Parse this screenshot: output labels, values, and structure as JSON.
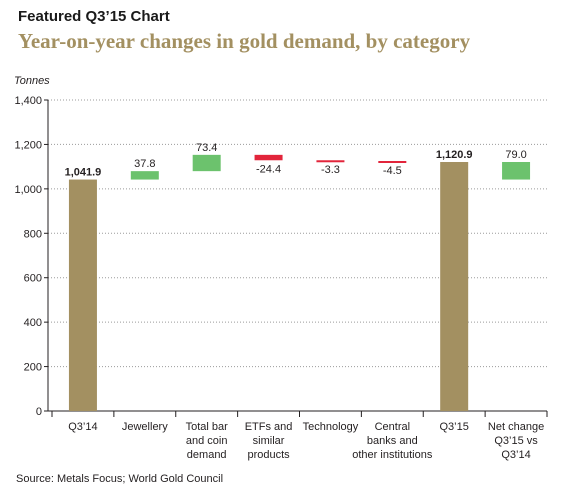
{
  "header": {
    "featured_label": "Featured Q3’15 Chart",
    "title": "Year-on-year changes in gold demand, by category"
  },
  "footer": {
    "source": "Source: Metals Focus; World Gold Council"
  },
  "colors": {
    "total": "#a39061",
    "increase": "#6cc26d",
    "decrease": "#e2253b",
    "axis": "#231f20",
    "grid": "#9b9b9b",
    "title": "#a39061"
  },
  "chart_data": {
    "type": "bar",
    "subtype": "waterfall",
    "ylabel": "Tonnes",
    "xlabel": "",
    "ylim": [
      0,
      1400
    ],
    "yticks": [
      0,
      200,
      400,
      600,
      800,
      1000,
      1200,
      1400
    ],
    "ytick_labels": [
      "0",
      "200",
      "400",
      "600",
      "800",
      "1,000",
      "1,200",
      "1,400"
    ],
    "grid": "dotted-horizontal",
    "categories": [
      [
        "Q3’14"
      ],
      [
        "Jewellery"
      ],
      [
        "Total bar",
        "and coin",
        "demand"
      ],
      [
        "ETFs and",
        "similar",
        "products"
      ],
      [
        "Technology"
      ],
      [
        "Central",
        "banks and",
        "other institutions"
      ],
      [
        "Q3’15"
      ],
      [
        "Net change",
        "Q3’15 vs",
        "Q3’14"
      ]
    ],
    "bars": [
      {
        "kind": "total",
        "start": 0,
        "end": 1041.9,
        "label": "1,041.9"
      },
      {
        "kind": "increase",
        "start": 1041.9,
        "end": 1079.7,
        "label": "37.8"
      },
      {
        "kind": "increase",
        "start": 1079.7,
        "end": 1153.1,
        "label": "73.4"
      },
      {
        "kind": "decrease",
        "start": 1153.1,
        "end": 1128.7,
        "label": "-24.4"
      },
      {
        "kind": "decrease",
        "start": 1128.7,
        "end": 1125.4,
        "label": "-3.3"
      },
      {
        "kind": "decrease",
        "start": 1125.4,
        "end": 1120.9,
        "label": "-4.5"
      },
      {
        "kind": "total",
        "start": 0,
        "end": 1120.9,
        "label": "1,120.9"
      },
      {
        "kind": "increase",
        "start": 1041.9,
        "end": 1120.9,
        "label": "79.0"
      }
    ]
  }
}
